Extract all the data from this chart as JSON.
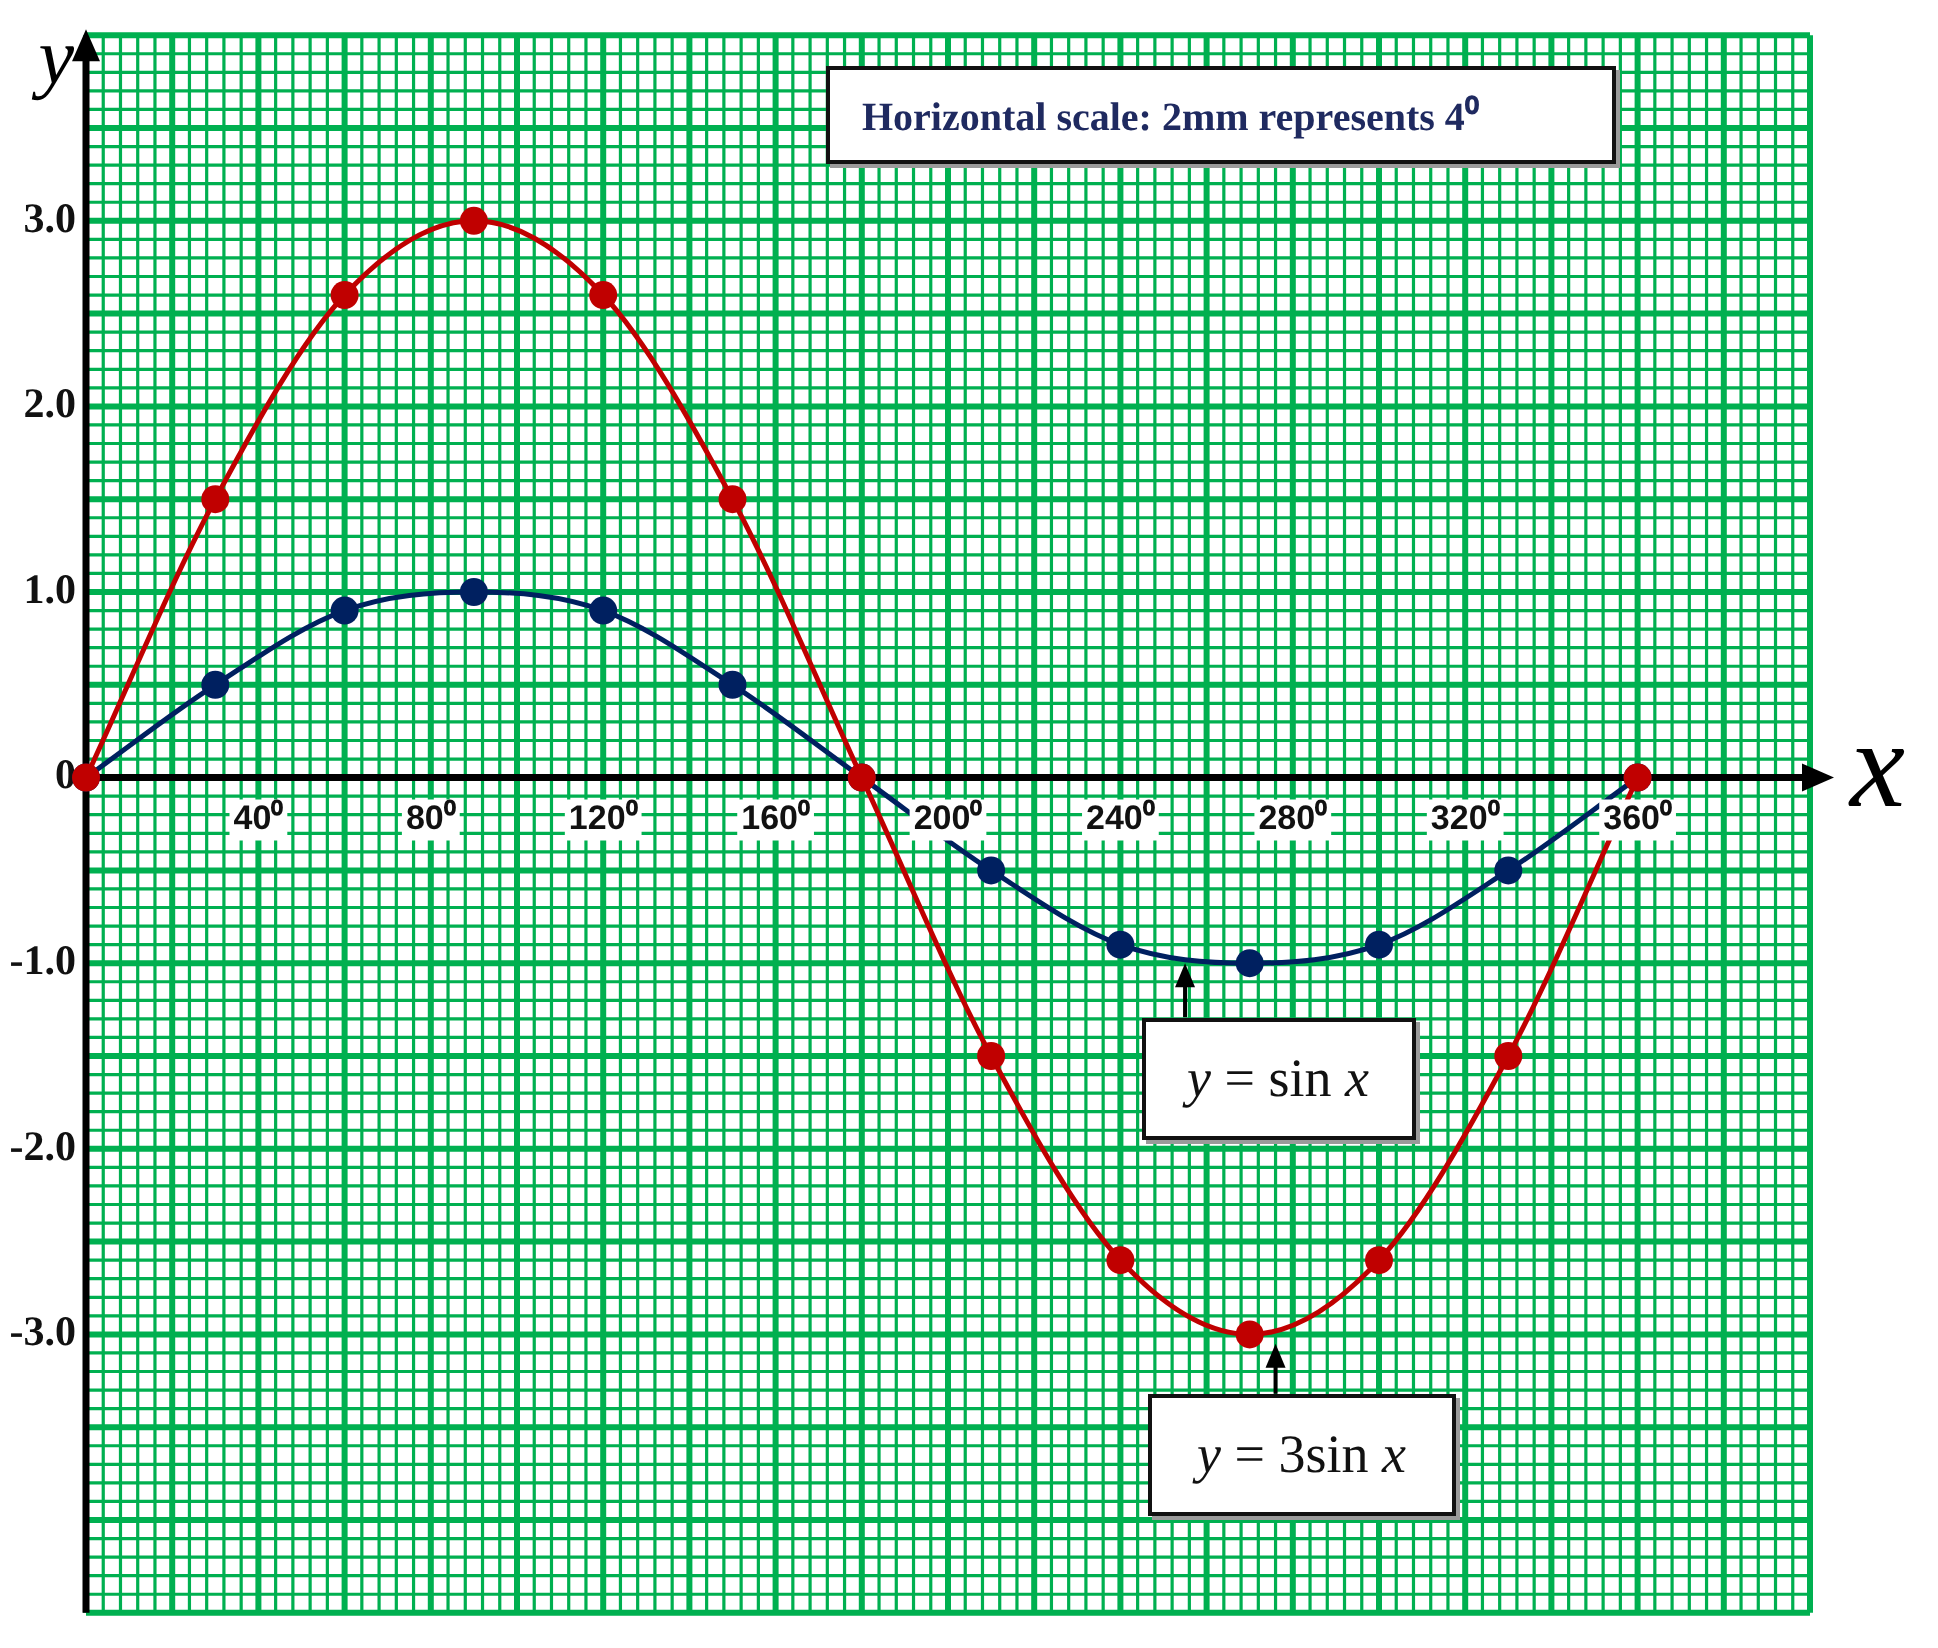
{
  "chart_data": {
    "type": "line",
    "xlabel": "x",
    "ylabel": "y",
    "annotations": [
      "Horizontal scale: 2mm represents 4⁰",
      {
        "text": "y = sin x",
        "x": 255,
        "y": -1.0
      },
      {
        "text": "y = 3sin x",
        "x": 276,
        "y": -3.05
      }
    ],
    "x": [
      0,
      30,
      60,
      90,
      120,
      150,
      180,
      210,
      240,
      270,
      300,
      330,
      360
    ],
    "series": [
      {
        "color": "#c00000",
        "values": [
          0,
          1.5,
          2.6,
          3,
          2.6,
          1.5,
          0,
          -1.5,
          -2.6,
          -3,
          -2.6,
          -1.5,
          0
        ]
      },
      {
        "color": "#002060",
        "values": [
          0,
          0.5,
          0.9,
          1,
          0.9,
          0.5,
          0,
          -0.5,
          -0.9,
          -1,
          -0.9,
          -0.5,
          0
        ]
      }
    ],
    "xlim": [
      0,
      400
    ],
    "ylim": [
      -4.5,
      4
    ],
    "xticks": [
      {
        "value": 0,
        "label": null
      },
      {
        "value": 4,
        "label": null
      },
      {
        "value": 8,
        "label": null
      },
      {
        "value": 12,
        "label": null
      },
      {
        "value": 16,
        "label": null
      },
      {
        "value": 20,
        "label": null
      },
      {
        "value": 24,
        "label": null
      },
      {
        "value": 28,
        "label": null
      },
      {
        "value": 32,
        "label": null
      },
      {
        "value": 36,
        "label": null
      },
      {
        "value": 40,
        "label": "40⁰"
      },
      {
        "value": 44,
        "label": null
      },
      {
        "value": 48,
        "label": null
      },
      {
        "value": 52,
        "label": null
      },
      {
        "value": 56,
        "label": null
      },
      {
        "value": 60,
        "label": null
      },
      {
        "value": 64,
        "label": null
      },
      {
        "value": 68,
        "label": null
      },
      {
        "value": 72,
        "label": null
      },
      {
        "value": 76,
        "label": null
      },
      {
        "value": 80,
        "label": "80⁰"
      },
      {
        "value": 84,
        "label": null
      },
      {
        "value": 88,
        "label": null
      },
      {
        "value": 92,
        "label": null
      },
      {
        "value": 96,
        "label": null
      },
      {
        "value": 100,
        "label": null
      },
      {
        "value": 104,
        "label": null
      },
      {
        "value": 108,
        "label": null
      },
      {
        "value": 112,
        "label": null
      },
      {
        "value": 116,
        "label": null
      },
      {
        "value": 120,
        "label": "120⁰"
      },
      {
        "value": 124,
        "label": null
      },
      {
        "value": 128,
        "label": null
      },
      {
        "value": 132,
        "label": null
      },
      {
        "value": 136,
        "label": null
      },
      {
        "value": 140,
        "label": null
      },
      {
        "value": 144,
        "label": null
      },
      {
        "value": 148,
        "label": null
      },
      {
        "value": 152,
        "label": null
      },
      {
        "value": 156,
        "label": null
      },
      {
        "value": 160,
        "label": "160⁰"
      },
      {
        "value": 164,
        "label": null
      },
      {
        "value": 168,
        "label": null
      },
      {
        "value": 172,
        "label": null
      },
      {
        "value": 176,
        "label": null
      },
      {
        "value": 180,
        "label": null
      },
      {
        "value": 184,
        "label": null
      },
      {
        "value": 188,
        "label": null
      },
      {
        "value": 192,
        "label": null
      },
      {
        "value": 196,
        "label": null
      },
      {
        "value": 200,
        "label": "200⁰"
      },
      {
        "value": 204,
        "label": null
      },
      {
        "value": 208,
        "label": null
      },
      {
        "value": 212,
        "label": null
      },
      {
        "value": 216,
        "label": null
      },
      {
        "value": 220,
        "label": null
      },
      {
        "value": 224,
        "label": null
      },
      {
        "value": 228,
        "label": null
      },
      {
        "value": 232,
        "label": null
      },
      {
        "value": 236,
        "label": null
      },
      {
        "value": 240,
        "label": "240⁰"
      },
      {
        "value": 244,
        "label": null
      },
      {
        "value": 248,
        "label": null
      },
      {
        "value": 252,
        "label": null
      },
      {
        "value": 256,
        "label": null
      },
      {
        "value": 260,
        "label": null
      },
      {
        "value": 264,
        "label": null
      },
      {
        "value": 268,
        "label": null
      },
      {
        "value": 272,
        "label": null
      },
      {
        "value": 276,
        "label": null
      },
      {
        "value": 280,
        "label": "280⁰"
      },
      {
        "value": 284,
        "label": null
      },
      {
        "value": 288,
        "label": null
      },
      {
        "value": 292,
        "label": null
      },
      {
        "value": 296,
        "label": null
      },
      {
        "value": 300,
        "label": null
      },
      {
        "value": 304,
        "label": null
      },
      {
        "value": 308,
        "label": null
      },
      {
        "value": 312,
        "label": null
      },
      {
        "value": 316,
        "label": null
      },
      {
        "value": 320,
        "label": "320⁰"
      },
      {
        "value": 324,
        "label": null
      },
      {
        "value": 328,
        "label": null
      },
      {
        "value": 332,
        "label": null
      },
      {
        "value": 336,
        "label": null
      },
      {
        "value": 340,
        "label": null
      },
      {
        "value": 344,
        "label": null
      },
      {
        "value": 348,
        "label": null
      },
      {
        "value": 352,
        "label": null
      },
      {
        "value": 356,
        "label": null
      },
      {
        "value": 360,
        "label": "360⁰"
      },
      {
        "value": 364,
        "label": null
      },
      {
        "value": 368,
        "label": null
      },
      {
        "value": 372,
        "label": null
      },
      {
        "value": 376,
        "label": null
      },
      {
        "value": 380,
        "label": null
      },
      {
        "value": 384,
        "label": null
      },
      {
        "value": 388,
        "label": null
      },
      {
        "value": 392,
        "label": null
      },
      {
        "value": 396,
        "label": null
      },
      {
        "value": 400,
        "label": null
      }
    ],
    "yticks": [
      {
        "value": -4.5,
        "label": null
      },
      {
        "value": -4.4,
        "label": null
      },
      {
        "value": -4.3,
        "label": null
      },
      {
        "value": -4.2,
        "label": null
      },
      {
        "value": -4.1,
        "label": null
      },
      {
        "value": -4.0,
        "label": null
      },
      {
        "value": -3.9,
        "label": null
      },
      {
        "value": -3.8,
        "label": null
      },
      {
        "value": -3.7,
        "label": null
      },
      {
        "value": -3.6,
        "label": null
      },
      {
        "value": -3.5,
        "label": null
      },
      {
        "value": -3.4,
        "label": null
      },
      {
        "value": -3.3,
        "label": null
      },
      {
        "value": -3.2,
        "label": null
      },
      {
        "value": -3.1,
        "label": null
      },
      {
        "value": -3,
        "label": "-3.0"
      },
      {
        "value": -2.9,
        "label": null
      },
      {
        "value": -2.8,
        "label": null
      },
      {
        "value": -2.7,
        "label": null
      },
      {
        "value": -2.6,
        "label": null
      },
      {
        "value": -2.5,
        "label": null
      },
      {
        "value": -2.4,
        "label": null
      },
      {
        "value": -2.3,
        "label": null
      },
      {
        "value": -2.2,
        "label": null
      },
      {
        "value": -2.1,
        "label": null
      },
      {
        "value": -2,
        "label": "-2.0"
      },
      {
        "value": -1.9,
        "label": null
      },
      {
        "value": -1.8,
        "label": null
      },
      {
        "value": -1.7,
        "label": null
      },
      {
        "value": -1.6,
        "label": null
      },
      {
        "value": -1.5,
        "label": null
      },
      {
        "value": -1.4,
        "label": null
      },
      {
        "value": -1.3,
        "label": null
      },
      {
        "value": -1.2,
        "label": null
      },
      {
        "value": -1.1,
        "label": null
      },
      {
        "value": -1,
        "label": "-1.0"
      },
      {
        "value": -0.9,
        "label": null
      },
      {
        "value": -0.8,
        "label": null
      },
      {
        "value": -0.7,
        "label": null
      },
      {
        "value": -0.6,
        "label": null
      },
      {
        "value": -0.5,
        "label": null
      },
      {
        "value": -0.4,
        "label": null
      },
      {
        "value": -0.3,
        "label": null
      },
      {
        "value": -0.2,
        "label": null
      },
      {
        "value": -0.1,
        "label": null
      },
      0,
      {
        "value": 0.1,
        "label": null
      },
      {
        "value": 0.2,
        "label": null
      },
      {
        "value": 0.3,
        "label": null
      },
      {
        "value": 0.4,
        "label": null
      },
      {
        "value": 0.5,
        "label": null
      },
      {
        "value": 0.6,
        "label": null
      },
      {
        "value": 0.7,
        "label": null
      },
      {
        "value": 0.8,
        "label": null
      },
      {
        "value": 0.9,
        "label": null
      },
      {
        "value": 1,
        "label": "1.0"
      },
      {
        "value": 1.1,
        "label": null
      },
      {
        "value": 1.2,
        "label": null
      },
      {
        "value": 1.3,
        "label": null
      },
      {
        "value": 1.4,
        "label": null
      },
      {
        "value": 1.5,
        "label": null
      },
      {
        "value": 1.6,
        "label": null
      },
      {
        "value": 1.7,
        "label": null
      },
      {
        "value": 1.8,
        "label": null
      },
      {
        "value": 1.9,
        "label": null
      },
      {
        "value": 2,
        "label": "2.0"
      },
      {
        "value": 2.1,
        "label": null
      },
      {
        "value": 2.2,
        "label": null
      },
      {
        "value": 2.3,
        "label": null
      },
      {
        "value": 2.4,
        "label": null
      },
      {
        "value": 2.5,
        "label": null
      },
      {
        "value": 2.6,
        "label": null
      },
      {
        "value": 2.7,
        "label": null
      },
      {
        "value": 2.8,
        "label": null
      },
      {
        "value": 2.9,
        "label": null
      },
      {
        "value": 3,
        "label": "3.0"
      },
      {
        "value": 3.1,
        "label": null
      },
      {
        "value": 3.2,
        "label": null
      },
      {
        "value": 3.3,
        "label": null
      },
      {
        "value": 3.4,
        "label": null
      },
      {
        "value": 3.5,
        "label": null
      },
      {
        "value": 3.6,
        "label": null
      },
      {
        "value": 3.7,
        "label": null
      },
      {
        "value": 3.8,
        "label": null
      },
      {
        "value": 3.9,
        "label": null
      },
      {
        "value": 4.0,
        "label": null
      }
    ],
    "grid": true,
    "marker": "circle",
    "line_style": "solid"
  }
}
